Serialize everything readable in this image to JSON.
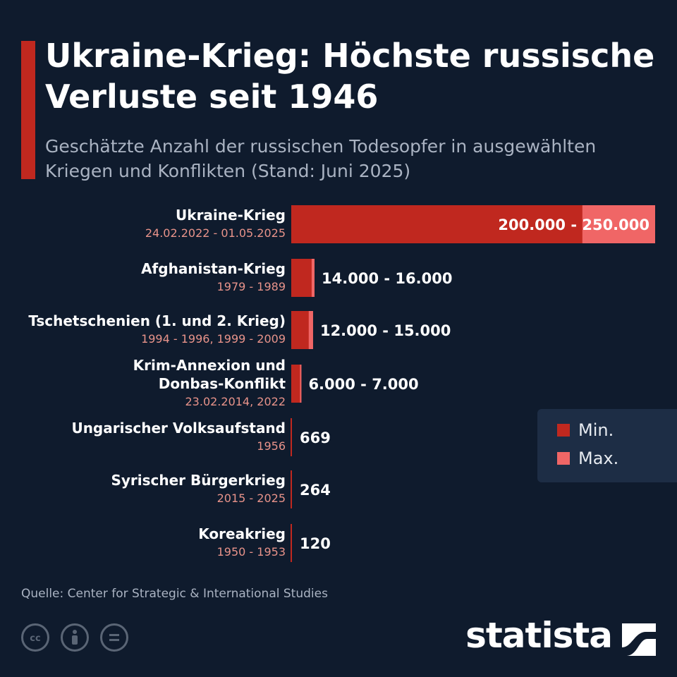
{
  "header": {
    "title": "Ukraine-Krieg: Höchste russische Verluste seit 1946",
    "subtitle": "Geschätzte Anzahl der russischen Todesopfer in ausgewählten Kriegen und Konflikten (Stand: Juni 2025)"
  },
  "legend": {
    "min_label": "Min.",
    "max_label": "Max."
  },
  "colors": {
    "min": "#c0281f",
    "max": "#f06666",
    "date_text": "#e8938a",
    "background": "#0f1b2d"
  },
  "chart_data": {
    "type": "bar",
    "orientation": "horizontal",
    "title": "Ukraine-Krieg: Höchste russische Verluste seit 1946",
    "subtitle": "Geschätzte Anzahl der russischen Todesopfer in ausgewählten Kriegen und Konflikten (Stand: Juni 2025)",
    "categories": [
      {
        "name": [
          "Ukraine-Krieg"
        ],
        "period": "24.02.2022 - 01.05.2025"
      },
      {
        "name": [
          "Afghanistan-Krieg"
        ],
        "period": "1979 - 1989"
      },
      {
        "name": [
          "Tschetschenien (1. und 2. Krieg)"
        ],
        "period": "1994 - 1996, 1999 - 2009"
      },
      {
        "name": [
          "Krim-Annexion und",
          "Donbas-Konflikt"
        ],
        "period": "23.02.2014, 2022"
      },
      {
        "name": [
          "Ungarischer Volksaufstand"
        ],
        "period": "1956"
      },
      {
        "name": [
          "Syrischer Bürgerkrieg"
        ],
        "period": "2015 - 2025"
      },
      {
        "name": [
          "Koreakrieg"
        ],
        "period": "1950 - 1953"
      }
    ],
    "series": [
      {
        "name": "Min.",
        "values": [
          200000,
          14000,
          12000,
          6000,
          669,
          264,
          120
        ]
      },
      {
        "name": "Max.",
        "values": [
          250000,
          16000,
          15000,
          7000,
          669,
          264,
          120
        ]
      }
    ],
    "value_labels": [
      "200.000 - 250.000",
      "14.000 - 16.000",
      "12.000 - 15.000",
      "6.000 - 7.000",
      "669",
      "264",
      "120"
    ],
    "xlim": [
      0,
      250000
    ],
    "legend_position": "right"
  },
  "footer": {
    "source": "Quelle: Center for Strategic & International Studies",
    "brand": "statista"
  }
}
